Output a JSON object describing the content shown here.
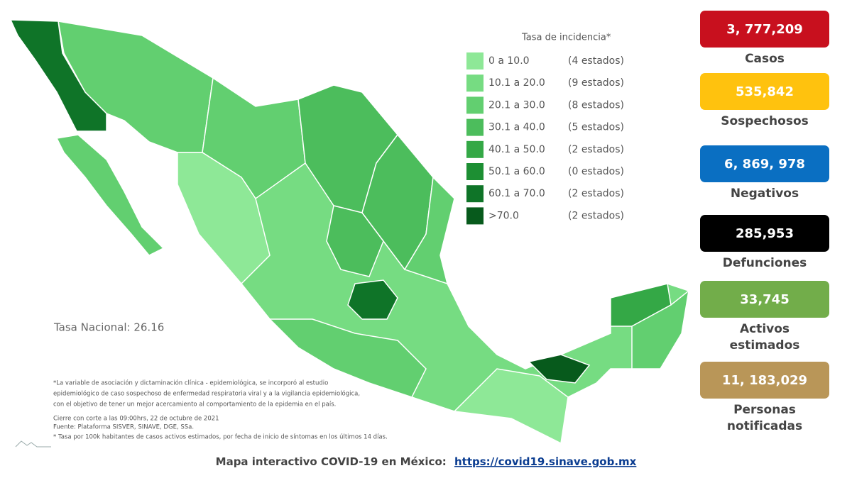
{
  "legend": {
    "title": "Tasa de incidencia*",
    "rows": [
      {
        "range": "0   a  10.0",
        "count": "(4 estados)",
        "color": "#8ee897"
      },
      {
        "range": "10.1 a  20.0",
        "count": "(9 estados)",
        "color": "#76dc82"
      },
      {
        "range": "20.1 a  30.0",
        "count": "(8 estados)",
        "color": "#62cf70"
      },
      {
        "range": "30.1 a  40.0",
        "count": "(5 estados)",
        "color": "#4cbd5c"
      },
      {
        "range": "40.1 a  50.0",
        "count": "(2 estados)",
        "color": "#34a846"
      },
      {
        "range": "50.1 a  60.0",
        "count": "(0 estados)",
        "color": "#1d8f33"
      },
      {
        "range": "60.1 a  70.0",
        "count": "(2 estados)",
        "color": "#0f7428"
      },
      {
        "range": ">70.0",
        "count": "(2 estados)",
        "color": "#075a1c"
      }
    ]
  },
  "national_rate": "Tasa Nacional: 26.16",
  "footnotes": [
    "*La variable de asociación y dictaminación clínica - epidemiológica, se incorporó al estudio",
    "epidemiológico de caso sospechoso de enfermedad respiratoria viral y a la vigilancia epidemiológica,",
    "con el objetivo de tener un mejor acercamiento al comportamiento de la epidemia en el país.",
    "Cierre con corte a las 09:00hrs, 22 de octubre de 2021",
    "Fuente: Plataforma SISVER, SINAVE, DGE, SSa.",
    "* Tasa por 100k habitantes de casos activos estimados, por fecha de inicio de síntomas en los últimos 14 días."
  ],
  "stats": [
    {
      "value": "3, 777,209",
      "label": [
        "Casos"
      ],
      "color": "#c8101e",
      "text_color": "#ffffff"
    },
    {
      "value": "535,842",
      "label": [
        "Sospechosos"
      ],
      "color": "#ffc20e",
      "text_color": "#ffffff"
    },
    {
      "value": "6, 869, 978",
      "label": [
        "Negativos"
      ],
      "color": "#0a6fc2",
      "text_color": "#ffffff"
    },
    {
      "value": "285,953",
      "label": [
        "Defunciones"
      ],
      "color": "#000000",
      "text_color": "#ffffff"
    },
    {
      "value": "33,745",
      "label": [
        "Activos",
        "estimados"
      ],
      "color": "#72ad4a",
      "text_color": "#ffffff"
    },
    {
      "value": "11, 183,029",
      "label": [
        "Personas",
        "notificadas"
      ],
      "color": "#b99658",
      "text_color": "#ffffff"
    }
  ],
  "footer": {
    "text": "Mapa interactivo COVID-19 en México:",
    "link": "https://covid19.sinave.gob.mx"
  }
}
